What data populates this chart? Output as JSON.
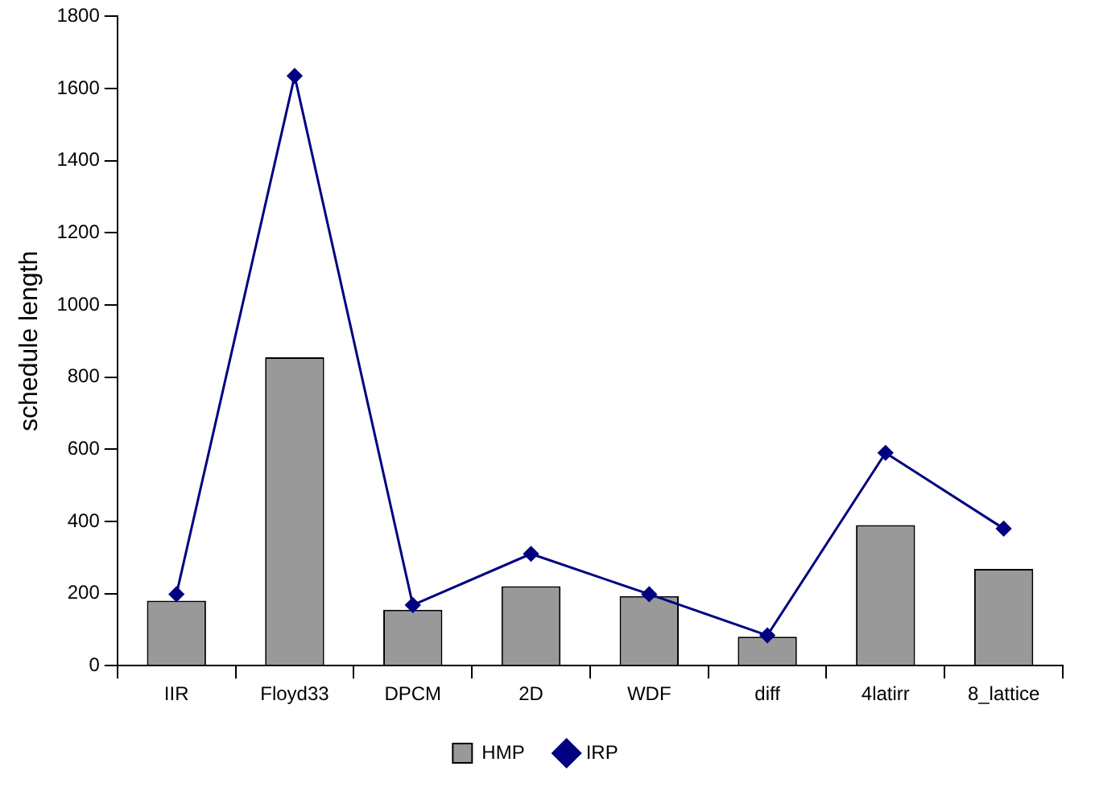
{
  "chart_data": {
    "type": "bar",
    "ylabel": "schedule length",
    "categories": [
      "IIR",
      "Floyd33",
      "DPCM",
      "2D",
      "WDF",
      "diff",
      "4latirr",
      "8_lattice"
    ],
    "series": [
      {
        "name": "HMP",
        "color": "#999999",
        "values": [
          180,
          855,
          155,
          220,
          193,
          80,
          390,
          268
        ]
      },
      {
        "name": "IRP",
        "type": "line",
        "color": "#000080",
        "values": [
          198,
          1635,
          168,
          310,
          198,
          84,
          590,
          380
        ]
      }
    ],
    "ylim": [
      0,
      1800
    ],
    "yticks": [
      0,
      200,
      400,
      600,
      800,
      1000,
      1200,
      1400,
      1600,
      1800
    ],
    "grid": false,
    "legend": "bottom",
    "marker": "diamond",
    "line_style": "solid"
  }
}
